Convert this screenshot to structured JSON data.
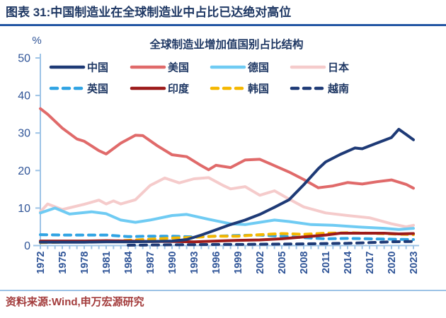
{
  "header": {
    "title": "图表 31:中国制造业在全球制造业中占比已达绝对高位"
  },
  "colors": {
    "caption_blue": "#1F3864",
    "caption_rule_blue": "#2457A4",
    "axis_line_blue": "#9DC3E6",
    "axis_label_blue": "#2F5497",
    "source_red": "#A33C3C"
  },
  "chart_data": {
    "type": "line",
    "title": "全球制造业增加值国别占比结构",
    "ylabel": "%",
    "ylim": [
      0,
      50
    ],
    "yticks": [
      0,
      10,
      20,
      30,
      40,
      50
    ],
    "x_tick_years": [
      1972,
      1975,
      1978,
      1981,
      1984,
      1987,
      1990,
      1993,
      1996,
      1999,
      2002,
      2005,
      2008,
      2011,
      2014,
      2017,
      2020,
      2023
    ],
    "x_range": [
      1972,
      2023
    ],
    "grid": false,
    "legend_position": "top-inside",
    "series": [
      {
        "key": "china",
        "name": "中国",
        "color": "#1E3A76",
        "dash": false,
        "z": 8,
        "points": [
          [
            1972,
            0.9
          ],
          [
            1975,
            0.9
          ],
          [
            1978,
            0.9
          ],
          [
            1981,
            1.0
          ],
          [
            1984,
            1.0
          ],
          [
            1987,
            1.1
          ],
          [
            1990,
            1.2
          ],
          [
            1992,
            1.6
          ],
          [
            1994,
            2.8
          ],
          [
            1996,
            4.2
          ],
          [
            1998,
            5.6
          ],
          [
            2000,
            6.8
          ],
          [
            2002,
            8.3
          ],
          [
            2004,
            10.2
          ],
          [
            2006,
            12.2
          ],
          [
            2008,
            16.2
          ],
          [
            2010,
            20.5
          ],
          [
            2011,
            22.3
          ],
          [
            2013,
            24.3
          ],
          [
            2015,
            26.0
          ],
          [
            2016,
            25.8
          ],
          [
            2018,
            27.3
          ],
          [
            2020,
            28.8
          ],
          [
            2021,
            31.0
          ],
          [
            2022,
            29.6
          ],
          [
            2023,
            28.2
          ]
        ]
      },
      {
        "key": "usa",
        "name": "美国",
        "color": "#E06A6A",
        "dash": false,
        "z": 7,
        "points": [
          [
            1972,
            36.5
          ],
          [
            1973,
            35.0
          ],
          [
            1975,
            31.3
          ],
          [
            1977,
            28.4
          ],
          [
            1978,
            27.8
          ],
          [
            1980,
            25.3
          ],
          [
            1981,
            24.4
          ],
          [
            1983,
            27.3
          ],
          [
            1985,
            29.4
          ],
          [
            1986,
            29.3
          ],
          [
            1988,
            26.6
          ],
          [
            1990,
            24.2
          ],
          [
            1992,
            23.7
          ],
          [
            1994,
            21.3
          ],
          [
            1995,
            20.2
          ],
          [
            1996,
            21.4
          ],
          [
            1998,
            20.8
          ],
          [
            2000,
            22.8
          ],
          [
            2002,
            23.0
          ],
          [
            2004,
            21.3
          ],
          [
            2006,
            19.6
          ],
          [
            2008,
            17.6
          ],
          [
            2010,
            15.4
          ],
          [
            2012,
            15.9
          ],
          [
            2014,
            16.8
          ],
          [
            2016,
            16.4
          ],
          [
            2018,
            17.0
          ],
          [
            2020,
            17.5
          ],
          [
            2022,
            16.3
          ],
          [
            2023,
            15.3
          ]
        ]
      },
      {
        "key": "germany",
        "name": "德国",
        "color": "#6FCBF3",
        "dash": false,
        "z": 2,
        "points": [
          [
            1972,
            8.7
          ],
          [
            1974,
            10.0
          ],
          [
            1976,
            8.4
          ],
          [
            1979,
            9.0
          ],
          [
            1981,
            8.5
          ],
          [
            1983,
            6.8
          ],
          [
            1985,
            6.2
          ],
          [
            1987,
            6.8
          ],
          [
            1990,
            8.0
          ],
          [
            1992,
            8.3
          ],
          [
            1995,
            7.0
          ],
          [
            1998,
            5.8
          ],
          [
            2000,
            5.6
          ],
          [
            2002,
            6.2
          ],
          [
            2004,
            6.8
          ],
          [
            2006,
            6.4
          ],
          [
            2009,
            5.6
          ],
          [
            2012,
            5.4
          ],
          [
            2016,
            4.9
          ],
          [
            2019,
            4.6
          ],
          [
            2021,
            4.3
          ],
          [
            2023,
            4.6
          ]
        ]
      },
      {
        "key": "japan",
        "name": "日本",
        "color": "#F5CBCB",
        "dash": false,
        "z": 1,
        "points": [
          [
            1972,
            9.0
          ],
          [
            1973,
            11.1
          ],
          [
            1975,
            9.6
          ],
          [
            1978,
            11.0
          ],
          [
            1980,
            12.1
          ],
          [
            1981,
            11.1
          ],
          [
            1982,
            11.9
          ],
          [
            1983,
            11.1
          ],
          [
            1985,
            12.2
          ],
          [
            1987,
            16.0
          ],
          [
            1989,
            18.0
          ],
          [
            1991,
            16.7
          ],
          [
            1993,
            17.8
          ],
          [
            1995,
            18.1
          ],
          [
            1997,
            16.0
          ],
          [
            1998,
            15.1
          ],
          [
            2000,
            15.7
          ],
          [
            2002,
            13.4
          ],
          [
            2004,
            14.6
          ],
          [
            2006,
            12.4
          ],
          [
            2008,
            10.3
          ],
          [
            2011,
            8.7
          ],
          [
            2014,
            8.0
          ],
          [
            2017,
            7.4
          ],
          [
            2020,
            5.8
          ],
          [
            2022,
            5.0
          ],
          [
            2023,
            5.4
          ]
        ]
      },
      {
        "key": "uk",
        "name": "英国",
        "color": "#2FA3E3",
        "dash": true,
        "z": 3,
        "points": [
          [
            1972,
            2.9
          ],
          [
            1975,
            2.8
          ],
          [
            1978,
            2.8
          ],
          [
            1981,
            2.8
          ],
          [
            1984,
            2.4
          ],
          [
            1987,
            2.5
          ],
          [
            1990,
            2.5
          ],
          [
            1993,
            2.3
          ],
          [
            1996,
            2.5
          ],
          [
            1999,
            2.7
          ],
          [
            2002,
            2.8
          ],
          [
            2005,
            2.5
          ],
          [
            2008,
            2.1
          ],
          [
            2011,
            1.8
          ],
          [
            2014,
            1.9
          ],
          [
            2017,
            1.8
          ],
          [
            2020,
            1.7
          ],
          [
            2023,
            1.6
          ]
        ]
      },
      {
        "key": "india",
        "name": "印度",
        "color": "#9C1B1B",
        "dash": false,
        "z": 5,
        "points": [
          [
            1972,
            1.2
          ],
          [
            1975,
            1.2
          ],
          [
            1978,
            1.2
          ],
          [
            1981,
            1.3
          ],
          [
            1984,
            1.2
          ],
          [
            1987,
            1.1
          ],
          [
            1990,
            1.1
          ],
          [
            1993,
            1.0
          ],
          [
            1996,
            1.2
          ],
          [
            1999,
            1.4
          ],
          [
            2002,
            1.5
          ],
          [
            2005,
            1.8
          ],
          [
            2008,
            2.3
          ],
          [
            2011,
            2.8
          ],
          [
            2013,
            3.3
          ],
          [
            2016,
            3.3
          ],
          [
            2019,
            3.3
          ],
          [
            2021,
            3.1
          ],
          [
            2023,
            3.2
          ]
        ]
      },
      {
        "key": "korea",
        "name": "韩国",
        "color": "#F5B700",
        "dash": true,
        "z": 4,
        "points": [
          [
            1972,
            0.8
          ],
          [
            1975,
            0.9
          ],
          [
            1978,
            1.2
          ],
          [
            1981,
            1.1
          ],
          [
            1984,
            1.4
          ],
          [
            1987,
            1.7
          ],
          [
            1990,
            2.0
          ],
          [
            1993,
            2.2
          ],
          [
            1996,
            2.5
          ],
          [
            1999,
            2.5
          ],
          [
            2002,
            2.9
          ],
          [
            2005,
            3.2
          ],
          [
            2008,
            3.0
          ],
          [
            2011,
            3.3
          ],
          [
            2014,
            3.4
          ],
          [
            2017,
            3.3
          ],
          [
            2020,
            3.1
          ],
          [
            2023,
            2.9
          ]
        ]
      },
      {
        "key": "vietnam",
        "name": "越南",
        "color": "#1E3A76",
        "dash": true,
        "z": 6,
        "points": [
          [
            1984,
            0.1
          ],
          [
            1987,
            0.15
          ],
          [
            1990,
            0.2
          ],
          [
            1993,
            0.25
          ],
          [
            1996,
            0.3
          ],
          [
            1999,
            0.3
          ],
          [
            2002,
            0.35
          ],
          [
            2005,
            0.4
          ],
          [
            2008,
            0.45
          ],
          [
            2011,
            0.55
          ],
          [
            2014,
            0.6
          ],
          [
            2017,
            0.8
          ],
          [
            2020,
            1.0
          ],
          [
            2023,
            1.1
          ]
        ]
      }
    ]
  },
  "footer": {
    "source": "资料来源:Wind,申万宏源研究"
  }
}
